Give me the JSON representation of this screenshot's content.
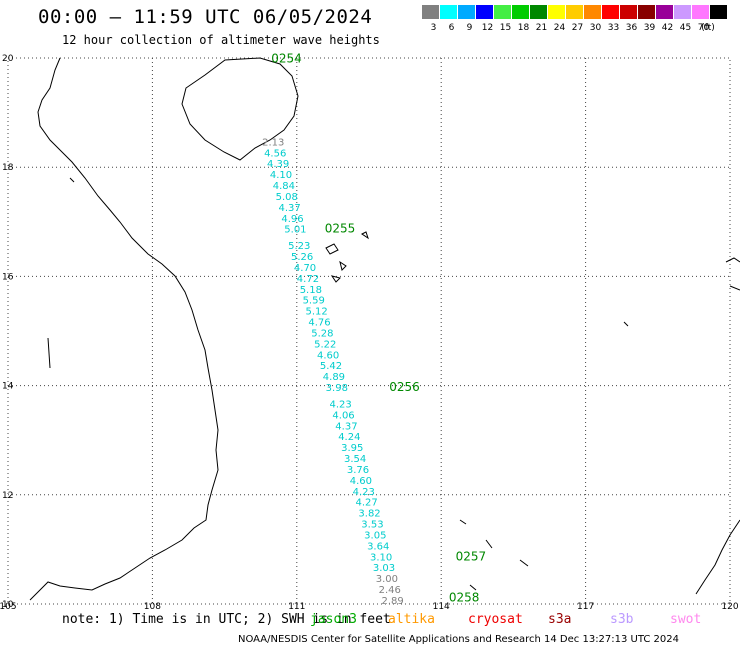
{
  "header": {
    "title": "00:00 – 11:59 UTC 06/05/2024",
    "subtitle": "12 hour collection of altimeter wave heights"
  },
  "legend": {
    "unit": "(ft)",
    "bins": [
      {
        "label": "3",
        "color": "#808080"
      },
      {
        "label": "6",
        "color": "#00ffff"
      },
      {
        "label": "9",
        "color": "#00aaff"
      },
      {
        "label": "12",
        "color": "#0000ff"
      },
      {
        "label": "15",
        "color": "#44ee44"
      },
      {
        "label": "18",
        "color": "#00cc00"
      },
      {
        "label": "21",
        "color": "#008800"
      },
      {
        "label": "24",
        "color": "#ffff00"
      },
      {
        "label": "27",
        "color": "#ffcc00"
      },
      {
        "label": "30",
        "color": "#ff8800"
      },
      {
        "label": "33",
        "color": "#ff0000"
      },
      {
        "label": "36",
        "color": "#cc0000"
      },
      {
        "label": "39",
        "color": "#880000"
      },
      {
        "label": "42",
        "color": "#990099"
      },
      {
        "label": "45",
        "color": "#cc99ff"
      },
      {
        "label": "70",
        "color": "#ff77ff"
      },
      {
        "label": "",
        "color": "#000000"
      }
    ]
  },
  "axes": {
    "lon_ticks": [
      {
        "value": 105,
        "label": "105"
      },
      {
        "value": 108,
        "label": "108"
      },
      {
        "value": 111,
        "label": "111"
      },
      {
        "value": 114,
        "label": "114"
      },
      {
        "value": 117,
        "label": "117"
      },
      {
        "value": 120,
        "label": "120"
      }
    ],
    "lat_ticks": [
      {
        "value": 20,
        "label": "20"
      },
      {
        "value": 18,
        "label": "18"
      },
      {
        "value": 16,
        "label": "16"
      },
      {
        "value": 14,
        "label": "14"
      },
      {
        "value": 12,
        "label": "12"
      },
      {
        "value": 10,
        "label": "10"
      }
    ],
    "lon_range": [
      105,
      120
    ],
    "lat_range": [
      10,
      20
    ]
  },
  "track": {
    "color_teal": "#00cccc",
    "color_grey": "#808080",
    "color_time": "#008800",
    "times": [
      {
        "label": "0254",
        "lon": 110.47,
        "lat": 19.92
      },
      {
        "label": "0255",
        "lon": 111.58,
        "lat": 16.8
      },
      {
        "label": "0256",
        "lon": 112.92,
        "lat": 13.9
      },
      {
        "label": "0257",
        "lon": 114.3,
        "lat": 10.8
      },
      {
        "label": "0258",
        "lon": 114.16,
        "lat": 10.05
      }
    ],
    "points": [
      {
        "v": "2.13",
        "grey": true,
        "lon": 110.28,
        "lat": 18.4
      },
      {
        "v": "4.56",
        "grey": false,
        "lon": 110.32,
        "lat": 18.2
      },
      {
        "v": "4.39",
        "grey": false,
        "lon": 110.38,
        "lat": 18.0
      },
      {
        "v": "4.10",
        "grey": false,
        "lon": 110.44,
        "lat": 17.8
      },
      {
        "v": "4.84",
        "grey": false,
        "lon": 110.5,
        "lat": 17.6
      },
      {
        "v": "5.08",
        "grey": false,
        "lon": 110.56,
        "lat": 17.4
      },
      {
        "v": "4.37",
        "grey": false,
        "lon": 110.62,
        "lat": 17.2
      },
      {
        "v": "4.96",
        "grey": false,
        "lon": 110.68,
        "lat": 17.0
      },
      {
        "v": "5.01",
        "grey": false,
        "lon": 110.74,
        "lat": 16.8
      },
      {
        "v": "5.23",
        "grey": false,
        "lon": 110.82,
        "lat": 16.5
      },
      {
        "v": "5.26",
        "grey": false,
        "lon": 110.88,
        "lat": 16.3
      },
      {
        "v": "4.70",
        "grey": false,
        "lon": 110.94,
        "lat": 16.1
      },
      {
        "v": "4.72",
        "grey": false,
        "lon": 111.0,
        "lat": 15.9
      },
      {
        "v": "5.18",
        "grey": false,
        "lon": 111.06,
        "lat": 15.7
      },
      {
        "v": "5.59",
        "grey": false,
        "lon": 111.12,
        "lat": 15.5
      },
      {
        "v": "5.12",
        "grey": false,
        "lon": 111.18,
        "lat": 15.3
      },
      {
        "v": "4.76",
        "grey": false,
        "lon": 111.24,
        "lat": 15.1
      },
      {
        "v": "5.28",
        "grey": false,
        "lon": 111.3,
        "lat": 14.9
      },
      {
        "v": "5.22",
        "grey": false,
        "lon": 111.36,
        "lat": 14.7
      },
      {
        "v": "4.60",
        "grey": false,
        "lon": 111.42,
        "lat": 14.5
      },
      {
        "v": "5.42",
        "grey": false,
        "lon": 111.48,
        "lat": 14.3
      },
      {
        "v": "4.89",
        "grey": false,
        "lon": 111.54,
        "lat": 14.1
      },
      {
        "v": "3.98",
        "grey": false,
        "lon": 111.6,
        "lat": 13.9
      },
      {
        "v": "4.23",
        "grey": false,
        "lon": 111.68,
        "lat": 13.6
      },
      {
        "v": "4.06",
        "grey": false,
        "lon": 111.74,
        "lat": 13.4
      },
      {
        "v": "4.37",
        "grey": false,
        "lon": 111.8,
        "lat": 13.2
      },
      {
        "v": "4.24",
        "grey": false,
        "lon": 111.86,
        "lat": 13.0
      },
      {
        "v": "3.95",
        "grey": false,
        "lon": 111.92,
        "lat": 12.8
      },
      {
        "v": "3.54",
        "grey": false,
        "lon": 111.98,
        "lat": 12.6
      },
      {
        "v": "3.76",
        "grey": false,
        "lon": 112.04,
        "lat": 12.4
      },
      {
        "v": "4.60",
        "grey": false,
        "lon": 112.1,
        "lat": 12.2
      },
      {
        "v": "4.23",
        "grey": false,
        "lon": 112.16,
        "lat": 12.0
      },
      {
        "v": "4.27",
        "grey": false,
        "lon": 112.22,
        "lat": 11.8
      },
      {
        "v": "3.82",
        "grey": false,
        "lon": 112.28,
        "lat": 11.6
      },
      {
        "v": "3.53",
        "grey": false,
        "lon": 112.34,
        "lat": 11.4
      },
      {
        "v": "3.05",
        "grey": false,
        "lon": 112.4,
        "lat": 11.2
      },
      {
        "v": "3.64",
        "grey": false,
        "lon": 112.46,
        "lat": 11.0
      },
      {
        "v": "3.10",
        "grey": false,
        "lon": 112.52,
        "lat": 10.8
      },
      {
        "v": "3.03",
        "grey": false,
        "lon": 112.58,
        "lat": 10.6
      },
      {
        "v": "3.00",
        "grey": true,
        "lon": 112.64,
        "lat": 10.4
      },
      {
        "v": "2.46",
        "grey": true,
        "lon": 112.7,
        "lat": 10.2
      },
      {
        "v": "2.89",
        "grey": true,
        "lon": 112.76,
        "lat": 10.0
      }
    ]
  },
  "footer": {
    "note": "note: 1) Time is in UTC; 2) SWH is in feet",
    "missions": [
      {
        "label": "jason3",
        "color": "#00aa00"
      },
      {
        "label": "altika",
        "color": "#ff9900"
      },
      {
        "label": "cryosat",
        "color": "#ee0000"
      },
      {
        "label": "s3a",
        "color": "#990000"
      },
      {
        "label": "s3b",
        "color": "#bb99ff"
      },
      {
        "label": "swot",
        "color": "#ff88ee"
      }
    ],
    "credit": "NOAA/NESDIS Center for Satellite Applications and Research    14 Dec 13:27:13 UTC 2024"
  }
}
